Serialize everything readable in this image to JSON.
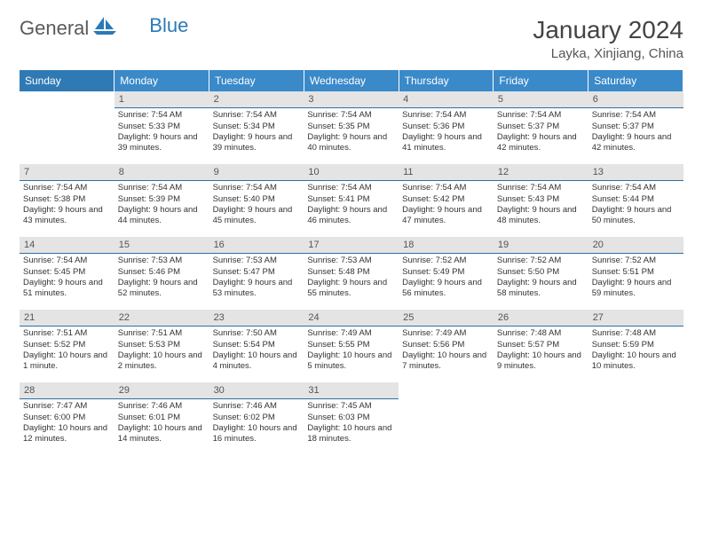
{
  "brand": {
    "general": "General",
    "blue": "Blue"
  },
  "title": "January 2024",
  "location": "Layka, Xinjiang, China",
  "colors": {
    "header_bg": "#3a89c9",
    "header_text": "#ffffff",
    "daybar_bg": "#e4e4e4",
    "daybar_border": "#2f6fa3",
    "text": "#333333"
  },
  "weekdays": [
    "Sunday",
    "Monday",
    "Tuesday",
    "Wednesday",
    "Thursday",
    "Friday",
    "Saturday"
  ],
  "weeks": [
    [
      null,
      {
        "n": "1",
        "sr": "Sunrise: 7:54 AM",
        "ss": "Sunset: 5:33 PM",
        "dl": "Daylight: 9 hours and 39 minutes."
      },
      {
        "n": "2",
        "sr": "Sunrise: 7:54 AM",
        "ss": "Sunset: 5:34 PM",
        "dl": "Daylight: 9 hours and 39 minutes."
      },
      {
        "n": "3",
        "sr": "Sunrise: 7:54 AM",
        "ss": "Sunset: 5:35 PM",
        "dl": "Daylight: 9 hours and 40 minutes."
      },
      {
        "n": "4",
        "sr": "Sunrise: 7:54 AM",
        "ss": "Sunset: 5:36 PM",
        "dl": "Daylight: 9 hours and 41 minutes."
      },
      {
        "n": "5",
        "sr": "Sunrise: 7:54 AM",
        "ss": "Sunset: 5:37 PM",
        "dl": "Daylight: 9 hours and 42 minutes."
      },
      {
        "n": "6",
        "sr": "Sunrise: 7:54 AM",
        "ss": "Sunset: 5:37 PM",
        "dl": "Daylight: 9 hours and 42 minutes."
      }
    ],
    [
      {
        "n": "7",
        "sr": "Sunrise: 7:54 AM",
        "ss": "Sunset: 5:38 PM",
        "dl": "Daylight: 9 hours and 43 minutes."
      },
      {
        "n": "8",
        "sr": "Sunrise: 7:54 AM",
        "ss": "Sunset: 5:39 PM",
        "dl": "Daylight: 9 hours and 44 minutes."
      },
      {
        "n": "9",
        "sr": "Sunrise: 7:54 AM",
        "ss": "Sunset: 5:40 PM",
        "dl": "Daylight: 9 hours and 45 minutes."
      },
      {
        "n": "10",
        "sr": "Sunrise: 7:54 AM",
        "ss": "Sunset: 5:41 PM",
        "dl": "Daylight: 9 hours and 46 minutes."
      },
      {
        "n": "11",
        "sr": "Sunrise: 7:54 AM",
        "ss": "Sunset: 5:42 PM",
        "dl": "Daylight: 9 hours and 47 minutes."
      },
      {
        "n": "12",
        "sr": "Sunrise: 7:54 AM",
        "ss": "Sunset: 5:43 PM",
        "dl": "Daylight: 9 hours and 48 minutes."
      },
      {
        "n": "13",
        "sr": "Sunrise: 7:54 AM",
        "ss": "Sunset: 5:44 PM",
        "dl": "Daylight: 9 hours and 50 minutes."
      }
    ],
    [
      {
        "n": "14",
        "sr": "Sunrise: 7:54 AM",
        "ss": "Sunset: 5:45 PM",
        "dl": "Daylight: 9 hours and 51 minutes."
      },
      {
        "n": "15",
        "sr": "Sunrise: 7:53 AM",
        "ss": "Sunset: 5:46 PM",
        "dl": "Daylight: 9 hours and 52 minutes."
      },
      {
        "n": "16",
        "sr": "Sunrise: 7:53 AM",
        "ss": "Sunset: 5:47 PM",
        "dl": "Daylight: 9 hours and 53 minutes."
      },
      {
        "n": "17",
        "sr": "Sunrise: 7:53 AM",
        "ss": "Sunset: 5:48 PM",
        "dl": "Daylight: 9 hours and 55 minutes."
      },
      {
        "n": "18",
        "sr": "Sunrise: 7:52 AM",
        "ss": "Sunset: 5:49 PM",
        "dl": "Daylight: 9 hours and 56 minutes."
      },
      {
        "n": "19",
        "sr": "Sunrise: 7:52 AM",
        "ss": "Sunset: 5:50 PM",
        "dl": "Daylight: 9 hours and 58 minutes."
      },
      {
        "n": "20",
        "sr": "Sunrise: 7:52 AM",
        "ss": "Sunset: 5:51 PM",
        "dl": "Daylight: 9 hours and 59 minutes."
      }
    ],
    [
      {
        "n": "21",
        "sr": "Sunrise: 7:51 AM",
        "ss": "Sunset: 5:52 PM",
        "dl": "Daylight: 10 hours and 1 minute."
      },
      {
        "n": "22",
        "sr": "Sunrise: 7:51 AM",
        "ss": "Sunset: 5:53 PM",
        "dl": "Daylight: 10 hours and 2 minutes."
      },
      {
        "n": "23",
        "sr": "Sunrise: 7:50 AM",
        "ss": "Sunset: 5:54 PM",
        "dl": "Daylight: 10 hours and 4 minutes."
      },
      {
        "n": "24",
        "sr": "Sunrise: 7:49 AM",
        "ss": "Sunset: 5:55 PM",
        "dl": "Daylight: 10 hours and 5 minutes."
      },
      {
        "n": "25",
        "sr": "Sunrise: 7:49 AM",
        "ss": "Sunset: 5:56 PM",
        "dl": "Daylight: 10 hours and 7 minutes."
      },
      {
        "n": "26",
        "sr": "Sunrise: 7:48 AM",
        "ss": "Sunset: 5:57 PM",
        "dl": "Daylight: 10 hours and 9 minutes."
      },
      {
        "n": "27",
        "sr": "Sunrise: 7:48 AM",
        "ss": "Sunset: 5:59 PM",
        "dl": "Daylight: 10 hours and 10 minutes."
      }
    ],
    [
      {
        "n": "28",
        "sr": "Sunrise: 7:47 AM",
        "ss": "Sunset: 6:00 PM",
        "dl": "Daylight: 10 hours and 12 minutes."
      },
      {
        "n": "29",
        "sr": "Sunrise: 7:46 AM",
        "ss": "Sunset: 6:01 PM",
        "dl": "Daylight: 10 hours and 14 minutes."
      },
      {
        "n": "30",
        "sr": "Sunrise: 7:46 AM",
        "ss": "Sunset: 6:02 PM",
        "dl": "Daylight: 10 hours and 16 minutes."
      },
      {
        "n": "31",
        "sr": "Sunrise: 7:45 AM",
        "ss": "Sunset: 6:03 PM",
        "dl": "Daylight: 10 hours and 18 minutes."
      },
      null,
      null,
      null
    ]
  ]
}
